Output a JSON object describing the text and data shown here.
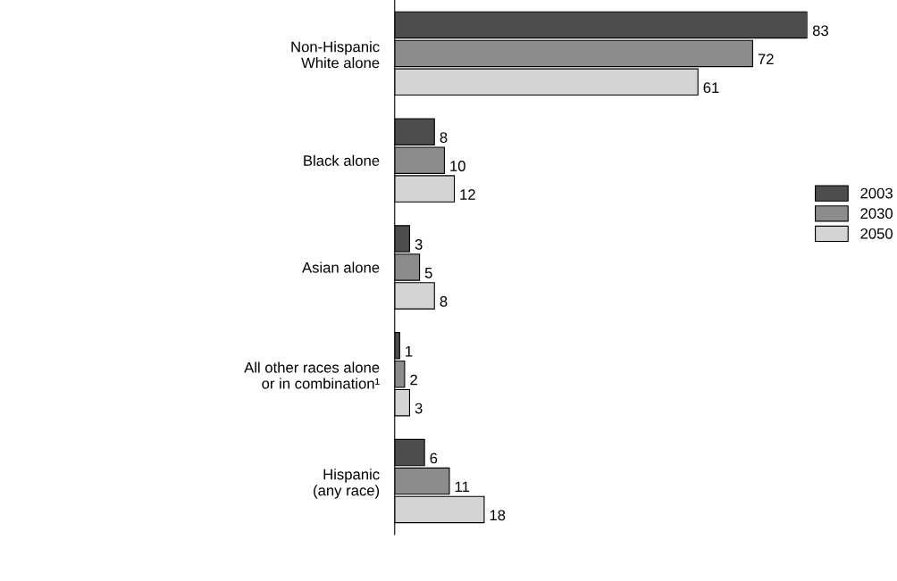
{
  "chart_data": {
    "type": "bar",
    "orientation": "horizontal",
    "categories": [
      "Non-Hispanic\nWhite alone",
      "Black alone",
      "Asian alone",
      "All other races alone\nor in combination¹",
      "Hispanic\n(any race)"
    ],
    "series": [
      {
        "name": "2003",
        "color": "#4d4d4d",
        "values": [
          83,
          8,
          3,
          1,
          6
        ]
      },
      {
        "name": "2030",
        "color": "#8c8c8c",
        "values": [
          72,
          10,
          5,
          2,
          11
        ]
      },
      {
        "name": "2050",
        "color": "#d4d4d4",
        "values": [
          61,
          12,
          8,
          3,
          18
        ]
      }
    ],
    "data_labels": true,
    "legend": "right",
    "grid": false,
    "tick_labels": "y"
  }
}
